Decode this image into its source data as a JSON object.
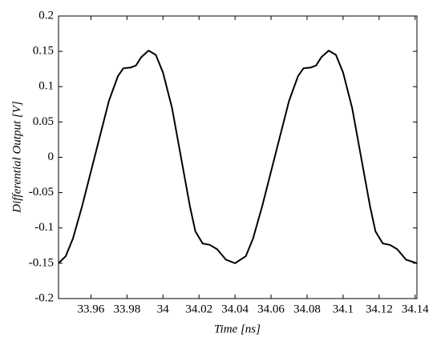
{
  "chart_data": {
    "type": "line",
    "x_label": "Time [ns]",
    "y_label": "Differential Output [V]",
    "x": [
      33.942,
      33.946,
      33.95,
      33.955,
      33.96,
      33.965,
      33.97,
      33.975,
      33.978,
      33.982,
      33.985,
      33.988,
      33.992,
      33.996,
      34,
      34.005,
      34.01,
      34.015,
      34.018,
      34.022,
      34.026,
      34.03,
      34.035,
      34.04,
      34.046,
      34.05,
      34.055,
      34.06,
      34.065,
      34.07,
      34.075,
      34.078,
      34.082,
      34.085,
      34.088,
      34.092,
      34.096,
      34.1,
      34.105,
      34.11,
      34.115,
      34.118,
      34.122,
      34.126,
      34.13,
      34.135,
      34.141
    ],
    "values": [
      -0.15,
      -0.14,
      -0.115,
      -0.07,
      -0.02,
      0.03,
      0.08,
      0.115,
      0.126,
      0.127,
      0.13,
      0.142,
      0.151,
      0.145,
      0.12,
      0.07,
      0,
      -0.07,
      -0.105,
      -0.122,
      -0.124,
      -0.13,
      -0.145,
      -0.15,
      -0.14,
      -0.115,
      -0.07,
      -0.02,
      0.03,
      0.08,
      0.115,
      0.126,
      0.127,
      0.13,
      0.142,
      0.151,
      0.145,
      0.12,
      0.07,
      0,
      -0.07,
      -0.105,
      -0.122,
      -0.124,
      -0.13,
      -0.145,
      -0.15
    ],
    "color": "#000000",
    "xlim": [
      33.942,
      34.141
    ],
    "ylim": [
      -0.2,
      0.2
    ],
    "xticks": [
      33.96,
      33.98,
      34,
      34.02,
      34.04,
      34.06,
      34.08,
      34.1,
      34.12,
      34.14
    ],
    "yticks": [
      -0.2,
      -0.15,
      -0.1,
      -0.05,
      0,
      0.05,
      0.1,
      0.15,
      0.2
    ],
    "grid": false
  }
}
